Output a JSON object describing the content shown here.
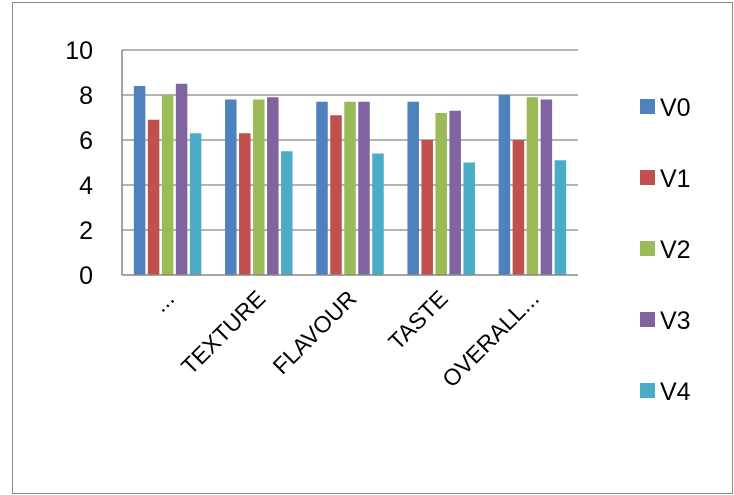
{
  "chart_data": {
    "type": "bar",
    "title": "",
    "xlabel": "",
    "ylabel": "",
    "categories": [
      "...",
      "TEXTURE",
      "FLAVOUR",
      "TASTE",
      "OVERALL..."
    ],
    "series": [
      {
        "name": "V0",
        "color": "#4f81bd",
        "values": [
          8.4,
          7.8,
          7.7,
          7.7,
          8.0
        ]
      },
      {
        "name": "V1",
        "color": "#c0504d",
        "values": [
          6.9,
          6.3,
          7.1,
          6.0,
          6.0
        ]
      },
      {
        "name": "V2",
        "color": "#9bbb59",
        "values": [
          8.0,
          7.8,
          7.7,
          7.2,
          7.9
        ]
      },
      {
        "name": "V3",
        "color": "#8064a2",
        "values": [
          8.5,
          7.9,
          7.7,
          7.3,
          7.8
        ]
      },
      {
        "name": "V4",
        "color": "#4bacc6",
        "values": [
          6.3,
          5.5,
          5.4,
          5.0,
          5.1
        ]
      }
    ],
    "ylim": [
      0,
      10
    ],
    "yticks": [
      0,
      2,
      4,
      6,
      8,
      10
    ],
    "grid": true,
    "legend": "right"
  }
}
